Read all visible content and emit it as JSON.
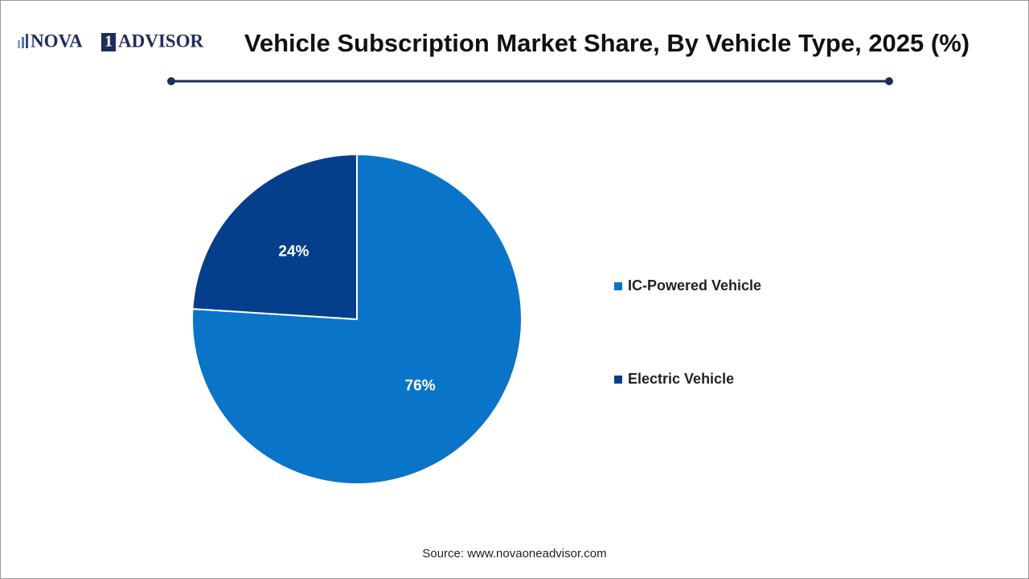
{
  "logo": {
    "left": "NOVA",
    "mark": "1",
    "right": "ADVISOR"
  },
  "chart_data": {
    "type": "pie",
    "title": "Vehicle Subscription Market Share, By Vehicle Type, 2025 (%)",
    "categories": [
      "IC-Powered Vehicle",
      "Electric Vehicle"
    ],
    "values": [
      76,
      24
    ],
    "value_labels": [
      "76%",
      "24%"
    ],
    "colors": [
      "#0a74c8",
      "#053f8c"
    ],
    "legend": "right",
    "source": "Source: www.novaoneadvisor.com"
  }
}
